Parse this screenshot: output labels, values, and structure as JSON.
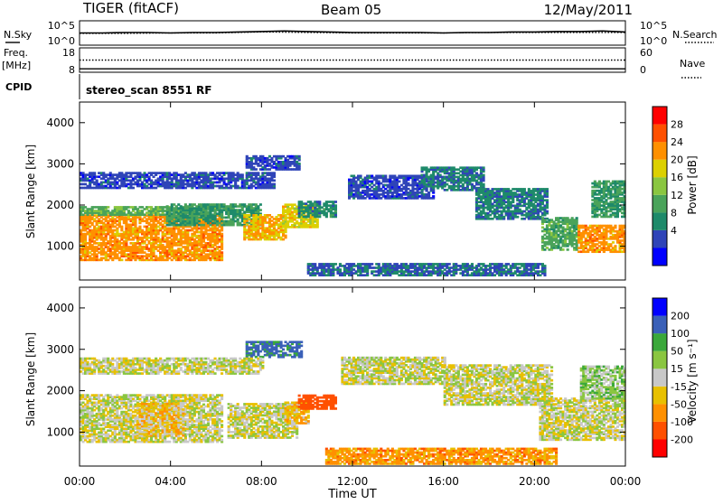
{
  "chart_data": [
    {
      "type": "line",
      "title": "TIGER (fitACF)",
      "beam_label": "Beam 05",
      "date_label": "12/May/2011",
      "panel": "N.Sky / N.Search",
      "left_label": "N.Sky",
      "right_label": "N.Search",
      "left_ticks": [
        "10^5",
        "10^0"
      ],
      "right_ticks": [
        "10^5",
        "10^0"
      ],
      "series": [
        {
          "name": "N.Sky",
          "style": "solid",
          "x": [
            0,
            1,
            2,
            3,
            4,
            5,
            6,
            7,
            8,
            9,
            10,
            11,
            12,
            13,
            14,
            15,
            16,
            17,
            18,
            19,
            20,
            21,
            22,
            23,
            24
          ],
          "values": [
            2.5,
            2.5,
            2.6,
            2.6,
            2.5,
            2.6,
            2.6,
            2.7,
            2.8,
            2.9,
            2.8,
            2.7,
            2.6,
            2.6,
            2.6,
            2.6,
            2.5,
            2.6,
            2.6,
            2.7,
            2.7,
            2.8,
            2.8,
            2.9,
            2.7
          ]
        },
        {
          "name": "N.Search",
          "style": "dotted",
          "x": [
            0,
            2,
            4,
            6,
            8,
            10,
            12,
            14,
            16,
            18,
            20,
            22,
            24
          ],
          "values": [
            2.4,
            2.4,
            2.5,
            2.5,
            2.7,
            2.6,
            2.5,
            2.5,
            2.5,
            2.6,
            2.6,
            2.6,
            2.6
          ]
        }
      ]
    },
    {
      "type": "line",
      "panel": "Freq / Nave",
      "left_label_top": "Freq.",
      "left_label_unit": "[MHz]",
      "right_label": "Nave",
      "left_ticks": [
        "18",
        "8"
      ],
      "right_ticks": [
        "60",
        "0"
      ],
      "series": [
        {
          "name": "Freq.",
          "style": "solid",
          "x": [
            0,
            24
          ],
          "values": [
            9.4,
            9.4
          ]
        },
        {
          "name": "Nave",
          "style": "dotted",
          "x": [
            0,
            24
          ],
          "values": [
            30,
            30
          ]
        }
      ]
    },
    {
      "type": "table",
      "panel": "CPID",
      "label": "CPID",
      "value": "stereo_scan 8551 RF"
    },
    {
      "type": "heatmap",
      "panel": "Power",
      "ylabel": "Slant Range [km]",
      "ylim": [
        180,
        4500
      ],
      "yticks": [
        "4000",
        "3000",
        "2000",
        "1000"
      ],
      "colorbar_label": "Power [dB]",
      "colorbar_ticks": [
        "28",
        "24",
        "20",
        "16",
        "12",
        "8",
        "4"
      ],
      "colors": [
        "#0000ff",
        "#2f44b8",
        "#1e8a6a",
        "#4aa35a",
        "#8ac640",
        "#dcd000",
        "#ff9000",
        "#ff5000",
        "#ff0000"
      ],
      "color_bounds": [
        0,
        4,
        8,
        12,
        16,
        20,
        24,
        28,
        32
      ],
      "regions": [
        {
          "x": [
            0.0,
            6.2
          ],
          "y": [
            650,
            1750
          ],
          "value": 26
        },
        {
          "x": [
            0.0,
            6.2
          ],
          "y": [
            1750,
            1950
          ],
          "value": 15
        },
        {
          "x": [
            3.8,
            7.9
          ],
          "y": [
            1500,
            2000
          ],
          "value": 12
        },
        {
          "x": [
            7.2,
            9.0
          ],
          "y": [
            1150,
            1750
          ],
          "value": 24
        },
        {
          "x": [
            8.9,
            10.4
          ],
          "y": [
            1450,
            2000
          ],
          "value": 22
        },
        {
          "x": [
            9.6,
            11.2
          ],
          "y": [
            1700,
            2100
          ],
          "value": 10
        },
        {
          "x": [
            7.3,
            9.6
          ],
          "y": [
            2850,
            3200
          ],
          "value": 6
        },
        {
          "x": [
            11.8,
            15.5
          ],
          "y": [
            2150,
            2700
          ],
          "value": 6
        },
        {
          "x": [
            15.0,
            17.8
          ],
          "y": [
            2350,
            2900
          ],
          "value": 9
        },
        {
          "x": [
            17.4,
            20.6
          ],
          "y": [
            1650,
            2400
          ],
          "value": 9
        },
        {
          "x": [
            20.3,
            21.9
          ],
          "y": [
            900,
            1700
          ],
          "value": 14
        },
        {
          "x": [
            21.9,
            24.0
          ],
          "y": [
            850,
            1500
          ],
          "value": 26
        },
        {
          "x": [
            22.5,
            24.0
          ],
          "y": [
            1700,
            2600
          ],
          "value": 12
        },
        {
          "x": [
            10.0,
            20.5
          ],
          "y": [
            280,
            570
          ],
          "value": 8
        },
        {
          "x": [
            0.0,
            8.5
          ],
          "y": [
            2400,
            2800
          ],
          "value": 6
        }
      ]
    },
    {
      "type": "heatmap",
      "panel": "Velocity",
      "ylabel": "Slant Range [km]",
      "ylim": [
        180,
        4500
      ],
      "yticks": [
        "4000",
        "3000",
        "2000",
        "1000"
      ],
      "xlabel": "Time UT",
      "xticks": [
        "00:00",
        "04:00",
        "08:00",
        "12:00",
        "16:00",
        "20:00",
        "00:00"
      ],
      "colorbar_label": "Velocity [m s⁻¹]",
      "colorbar_ticks": [
        "200",
        "100",
        "50",
        "15",
        "-15",
        "-50",
        "-100",
        "-200"
      ],
      "colors": [
        "#ff0000",
        "#ff5000",
        "#ff9000",
        "#e8c000",
        "#c8c8c8",
        "#8ac640",
        "#3aa83a",
        "#3a60b8",
        "#0000ff"
      ],
      "color_bounds": [
        -250,
        -200,
        -100,
        -50,
        -15,
        15,
        50,
        100,
        200,
        250
      ],
      "regions": [
        {
          "x": [
            0.0,
            6.2
          ],
          "y": [
            750,
            1900
          ],
          "value": 0
        },
        {
          "x": [
            2.5,
            4.5
          ],
          "y": [
            900,
            1700
          ],
          "value": -30
        },
        {
          "x": [
            6.5,
            9.5
          ],
          "y": [
            850,
            1700
          ],
          "value": 0
        },
        {
          "x": [
            9.0,
            10.0
          ],
          "y": [
            1200,
            1700
          ],
          "value": -40
        },
        {
          "x": [
            9.6,
            11.2
          ],
          "y": [
            1550,
            1900
          ],
          "value": -150
        },
        {
          "x": [
            11.5,
            16.0
          ],
          "y": [
            2150,
            2800
          ],
          "value": 0
        },
        {
          "x": [
            16.0,
            20.8
          ],
          "y": [
            1650,
            2600
          ],
          "value": 0
        },
        {
          "x": [
            20.2,
            24.0
          ],
          "y": [
            800,
            1800
          ],
          "value": 0
        },
        {
          "x": [
            22.0,
            24.0
          ],
          "y": [
            1800,
            2600
          ],
          "value": 30
        },
        {
          "x": [
            10.8,
            21.0
          ],
          "y": [
            220,
            600
          ],
          "value": -70
        },
        {
          "x": [
            7.3,
            9.7
          ],
          "y": [
            2800,
            3200
          ],
          "value": 120
        },
        {
          "x": [
            0.0,
            8.0
          ],
          "y": [
            2400,
            2800
          ],
          "value": 0
        }
      ]
    }
  ]
}
